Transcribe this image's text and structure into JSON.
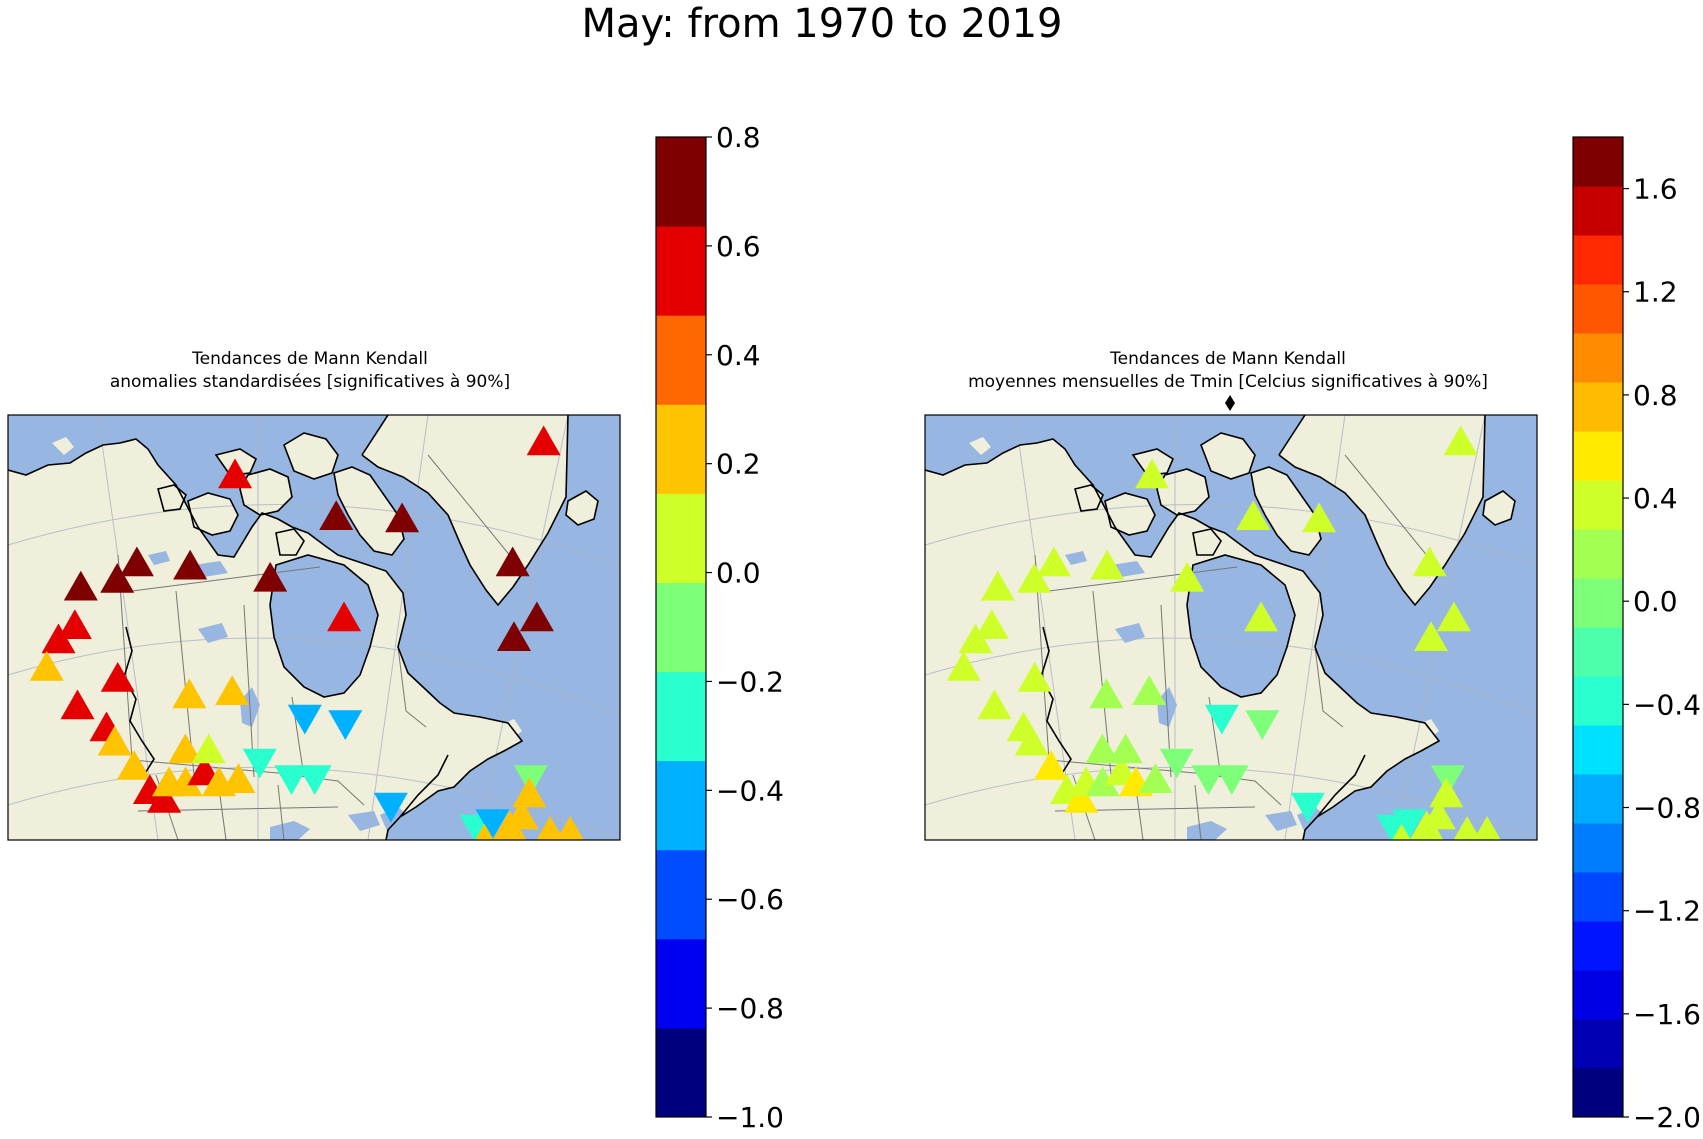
{
  "figure": {
    "title": "May: from 1970 to 2019"
  },
  "colors": {
    "ocean": "#97b6e1",
    "land": "#efefdb",
    "lakes": "#97b6e1",
    "coast": "#000000",
    "border": "#777777",
    "grid": "#aab4c4"
  },
  "panels": [
    {
      "title_line1": "Tendances de Mann Kendall",
      "title_line2": "anomalies standardisées [significatives à 90%]",
      "colorbar": {
        "vmin": -1.0,
        "vmax": 0.8,
        "colors": [
          "#00007f",
          "#0000f1",
          "#004dff",
          "#00b1ff",
          "#29ffce",
          "#7dff7a",
          "#ceff29",
          "#ffc400",
          "#ff6800",
          "#e40000",
          "#7f0000"
        ],
        "ticks": [
          "0.8",
          "0.6",
          "0.4",
          "0.2",
          "0.0",
          "−0.2",
          "−0.4",
          "−0.6",
          "−0.8",
          "−1.0"
        ]
      },
      "markers": [
        {
          "lon": -137.0,
          "lat": 63.5,
          "v": 0.6,
          "d": "up"
        },
        {
          "lon": -134.5,
          "lat": 64.8,
          "v": 0.6,
          "d": "up"
        },
        {
          "lon": -133.5,
          "lat": 68.3,
          "v": 0.75,
          "d": "up"
        },
        {
          "lon": -128.0,
          "lat": 69.0,
          "v": 0.75,
          "d": "up"
        },
        {
          "lon": -125.0,
          "lat": 70.5,
          "v": 0.75,
          "d": "up"
        },
        {
          "lon": -117.0,
          "lat": 70.2,
          "v": 0.75,
          "d": "up"
        },
        {
          "lon": -105.0,
          "lat": 69.1,
          "v": 0.75,
          "d": "up"
        },
        {
          "lon": -94.9,
          "lat": 74.7,
          "v": 0.75,
          "d": "up"
        },
        {
          "lon": -85.0,
          "lat": 74.5,
          "v": 0.75,
          "d": "up"
        },
        {
          "lon": -68.5,
          "lat": 70.5,
          "v": 0.75,
          "d": "up"
        },
        {
          "lon": -65.0,
          "lat": 65.5,
          "v": 0.75,
          "d": "up"
        },
        {
          "lon": -68.5,
          "lat": 63.7,
          "v": 0.75,
          "d": "up"
        },
        {
          "lon": -94.0,
          "lat": 65.5,
          "v": 0.5,
          "d": "up"
        },
        {
          "lon": -63.5,
          "lat": 81.5,
          "v": 0.5,
          "d": "up"
        },
        {
          "lon": -110.0,
          "lat": 78.5,
          "v": 0.5,
          "d": "up"
        },
        {
          "lon": -139.0,
          "lat": 61.0,
          "v": 0.3,
          "d": "up"
        },
        {
          "lon": -128.5,
          "lat": 60.0,
          "v": 0.5,
          "d": "up"
        },
        {
          "lon": -135.0,
          "lat": 57.5,
          "v": 0.5,
          "d": "up"
        },
        {
          "lon": -131.0,
          "lat": 55.5,
          "v": 0.5,
          "d": "up"
        },
        {
          "lon": -130.0,
          "lat": 54.2,
          "v": 0.3,
          "d": "up"
        },
        {
          "lon": -127.5,
          "lat": 52.0,
          "v": 0.3,
          "d": "up"
        },
        {
          "lon": -125.5,
          "lat": 49.8,
          "v": 0.6,
          "d": "up"
        },
        {
          "lon": -123.5,
          "lat": 49.0,
          "v": 0.6,
          "d": "up"
        },
        {
          "lon": -122.5,
          "lat": 50.5,
          "v": 0.3,
          "d": "up"
        },
        {
          "lon": -120.0,
          "lat": 50.5,
          "v": 0.3,
          "d": "up"
        },
        {
          "lon": -117.0,
          "lat": 51.5,
          "v": 0.6,
          "d": "up"
        },
        {
          "lon": -119.5,
          "lat": 53.5,
          "v": 0.3,
          "d": "up"
        },
        {
          "lon": -115.0,
          "lat": 50.5,
          "v": 0.3,
          "d": "up"
        },
        {
          "lon": -116.0,
          "lat": 53.5,
          "v": 0.1,
          "d": "up"
        },
        {
          "lon": -118.0,
          "lat": 58.5,
          "v": 0.3,
          "d": "up"
        },
        {
          "lon": -111.5,
          "lat": 58.8,
          "v": 0.3,
          "d": "up"
        },
        {
          "lon": -112.0,
          "lat": 50.8,
          "v": 0.3,
          "d": "up"
        },
        {
          "lon": -108.5,
          "lat": 52.5,
          "v": -0.3,
          "d": "down"
        },
        {
          "lon": -104.0,
          "lat": 51.0,
          "v": -0.3,
          "d": "down"
        },
        {
          "lon": -100.5,
          "lat": 51.0,
          "v": -0.3,
          "d": "down"
        },
        {
          "lon": -101.0,
          "lat": 56.5,
          "v": -0.5,
          "d": "down"
        },
        {
          "lon": -95.0,
          "lat": 56.0,
          "v": -0.5,
          "d": "down"
        },
        {
          "lon": -89.5,
          "lat": 48.5,
          "v": -0.5,
          "d": "down"
        },
        {
          "lon": -77.0,
          "lat": 46.5,
          "v": -0.3,
          "d": "down"
        },
        {
          "lon": -74.5,
          "lat": 47.0,
          "v": -0.5,
          "d": "down"
        },
        {
          "lon": -68.0,
          "lat": 51.0,
          "v": -0.1,
          "d": "down"
        },
        {
          "lon": -79.5,
          "lat": 43.8,
          "v": 0.3,
          "d": "up"
        },
        {
          "lon": -76.0,
          "lat": 45.3,
          "v": 0.3,
          "d": "up"
        },
        {
          "lon": -72.0,
          "lat": 46.5,
          "v": 0.3,
          "d": "up"
        },
        {
          "lon": -70.0,
          "lat": 47.5,
          "v": 0.3,
          "d": "up"
        },
        {
          "lon": -66.0,
          "lat": 46.0,
          "v": 0.3,
          "d": "up"
        },
        {
          "lon": -63.0,
          "lat": 46.0,
          "v": 0.3,
          "d": "up"
        },
        {
          "lon": -68.5,
          "lat": 49.5,
          "v": 0.3,
          "d": "up"
        }
      ]
    },
    {
      "title_line1": "Tendances de Mann Kendall",
      "title_line2": "moyennes mensuelles de Tmin [Celcius significatives à 90%]",
      "colorbar": {
        "vmin": -2.0,
        "vmax": 1.8,
        "colors": [
          "#00007f",
          "#0000b2",
          "#0000e4",
          "#0014ff",
          "#0048ff",
          "#007cff",
          "#00acff",
          "#00e0ff",
          "#29ffce",
          "#4dffaa",
          "#7dff7a",
          "#a4ff53",
          "#ceff29",
          "#ffea00",
          "#ffbb00",
          "#ff8b00",
          "#ff5700",
          "#ff2800",
          "#c60000",
          "#7f0000"
        ],
        "ticks": [
          "1.6",
          "1.2",
          "0.8",
          "0.4",
          "0.0",
          "−0.4",
          "−0.8",
          "−1.2",
          "−1.6",
          "−2.0"
        ],
        "tick_values": [
          1.6,
          1.2,
          0.8,
          0.4,
          0.0,
          -0.4,
          -0.8,
          -1.2,
          -1.6,
          -2.0
        ]
      },
      "markers": [
        {
          "lon": -137.0,
          "lat": 63.5,
          "v": 0.3,
          "d": "up"
        },
        {
          "lon": -134.5,
          "lat": 64.8,
          "v": 0.3,
          "d": "up"
        },
        {
          "lon": -133.5,
          "lat": 68.3,
          "v": 0.3,
          "d": "up"
        },
        {
          "lon": -128.0,
          "lat": 69.0,
          "v": 0.3,
          "d": "up"
        },
        {
          "lon": -125.0,
          "lat": 70.5,
          "v": 0.3,
          "d": "up"
        },
        {
          "lon": -117.0,
          "lat": 70.2,
          "v": 0.3,
          "d": "up"
        },
        {
          "lon": -105.0,
          "lat": 69.1,
          "v": 0.3,
          "d": "up"
        },
        {
          "lon": -94.9,
          "lat": 74.7,
          "v": 0.45,
          "d": "up"
        },
        {
          "lon": -85.0,
          "lat": 74.5,
          "v": 0.45,
          "d": "up"
        },
        {
          "lon": -68.5,
          "lat": 70.5,
          "v": 0.3,
          "d": "up"
        },
        {
          "lon": -65.0,
          "lat": 65.5,
          "v": 0.3,
          "d": "up"
        },
        {
          "lon": -68.5,
          "lat": 63.7,
          "v": 0.45,
          "d": "up"
        },
        {
          "lon": -94.0,
          "lat": 65.5,
          "v": 0.45,
          "d": "up"
        },
        {
          "lon": -63.5,
          "lat": 81.5,
          "v": 0.45,
          "d": "up"
        },
        {
          "lon": -110.0,
          "lat": 78.5,
          "v": 0.45,
          "d": "up"
        },
        {
          "lon": -139.0,
          "lat": 61.0,
          "v": 0.3,
          "d": "up"
        },
        {
          "lon": -128.5,
          "lat": 60.0,
          "v": 0.3,
          "d": "up"
        },
        {
          "lon": -135.0,
          "lat": 57.5,
          "v": 0.45,
          "d": "up"
        },
        {
          "lon": -131.0,
          "lat": 55.5,
          "v": 0.45,
          "d": "up"
        },
        {
          "lon": -130.0,
          "lat": 54.2,
          "v": 0.45,
          "d": "up"
        },
        {
          "lon": -127.5,
          "lat": 52.0,
          "v": 0.65,
          "d": "up"
        },
        {
          "lon": -125.5,
          "lat": 49.8,
          "v": 0.45,
          "d": "up"
        },
        {
          "lon": -123.5,
          "lat": 49.0,
          "v": 0.65,
          "d": "up"
        },
        {
          "lon": -122.5,
          "lat": 50.5,
          "v": 0.3,
          "d": "up"
        },
        {
          "lon": -120.0,
          "lat": 50.5,
          "v": 0.1,
          "d": "up"
        },
        {
          "lon": -117.0,
          "lat": 51.5,
          "v": 0.3,
          "d": "up"
        },
        {
          "lon": -119.5,
          "lat": 53.5,
          "v": 0.1,
          "d": "up"
        },
        {
          "lon": -115.0,
          "lat": 50.5,
          "v": 0.65,
          "d": "up"
        },
        {
          "lon": -116.0,
          "lat": 53.5,
          "v": 0.1,
          "d": "up"
        },
        {
          "lon": -118.0,
          "lat": 58.5,
          "v": 0.1,
          "d": "up"
        },
        {
          "lon": -111.5,
          "lat": 58.8,
          "v": 0.1,
          "d": "up"
        },
        {
          "lon": -112.0,
          "lat": 50.8,
          "v": 0.1,
          "d": "up"
        },
        {
          "lon": -108.5,
          "lat": 52.5,
          "v": -0.1,
          "d": "down"
        },
        {
          "lon": -104.0,
          "lat": 51.0,
          "v": -0.1,
          "d": "down"
        },
        {
          "lon": -100.5,
          "lat": 51.0,
          "v": -0.1,
          "d": "down"
        },
        {
          "lon": -101.0,
          "lat": 56.5,
          "v": -0.3,
          "d": "down"
        },
        {
          "lon": -95.0,
          "lat": 56.0,
          "v": -0.1,
          "d": "down"
        },
        {
          "lon": -89.5,
          "lat": 48.5,
          "v": -0.3,
          "d": "down"
        },
        {
          "lon": -77.0,
          "lat": 46.5,
          "v": -0.3,
          "d": "down"
        },
        {
          "lon": -74.5,
          "lat": 47.0,
          "v": -0.3,
          "d": "down"
        },
        {
          "lon": -68.0,
          "lat": 51.0,
          "v": -0.1,
          "d": "down"
        },
        {
          "lon": -79.5,
          "lat": 43.8,
          "v": 0.3,
          "d": "up"
        },
        {
          "lon": -76.0,
          "lat": 45.3,
          "v": 0.3,
          "d": "up"
        },
        {
          "lon": -72.0,
          "lat": 46.5,
          "v": 0.3,
          "d": "up"
        },
        {
          "lon": -70.0,
          "lat": 47.5,
          "v": 0.3,
          "d": "up"
        },
        {
          "lon": -66.0,
          "lat": 46.0,
          "v": 0.3,
          "d": "up"
        },
        {
          "lon": -63.0,
          "lat": 46.0,
          "v": 0.45,
          "d": "up"
        },
        {
          "lon": -68.5,
          "lat": 49.5,
          "v": 0.3,
          "d": "up"
        }
      ]
    }
  ]
}
